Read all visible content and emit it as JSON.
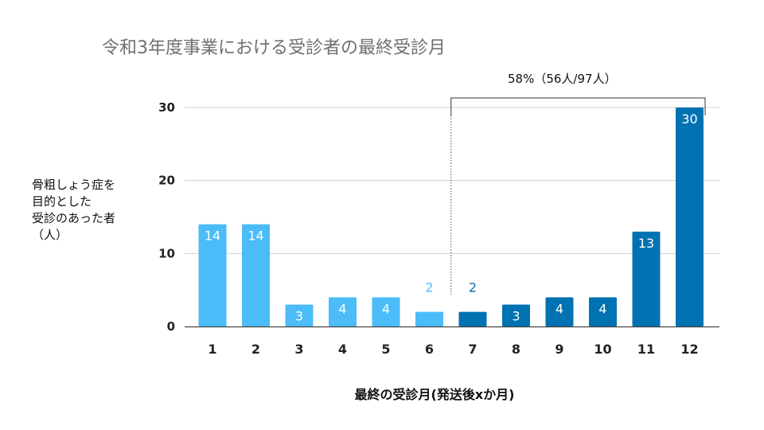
{
  "chart_data": {
    "type": "bar",
    "title": "令和3年度事業における受診者の最終受診月",
    "ylabel_lines": [
      "骨粗しょう症を",
      "目的とした",
      "受診のあった者",
      "（人）"
    ],
    "xlabel": "最終の受診月(発送後xか月)",
    "categories": [
      "1",
      "2",
      "3",
      "4",
      "5",
      "6",
      "7",
      "8",
      "9",
      "10",
      "11",
      "12"
    ],
    "values": [
      14,
      14,
      3,
      4,
      4,
      2,
      2,
      3,
      4,
      4,
      13,
      30
    ],
    "ylim": [
      0,
      30
    ],
    "yticks": [
      0,
      10,
      20,
      30
    ],
    "grid": true,
    "colors": {
      "light": "#4bbcf8",
      "dark": "#0072b2",
      "light_label": "#4bbcf8",
      "dark_label": "#0a6aa8"
    },
    "bar_colors": [
      "light",
      "light",
      "light",
      "light",
      "light",
      "light",
      "dark",
      "dark",
      "dark",
      "dark",
      "dark",
      "dark"
    ],
    "annotation": {
      "text": "58%（56人/97人）",
      "from_category": "7",
      "to_category": "12"
    }
  }
}
